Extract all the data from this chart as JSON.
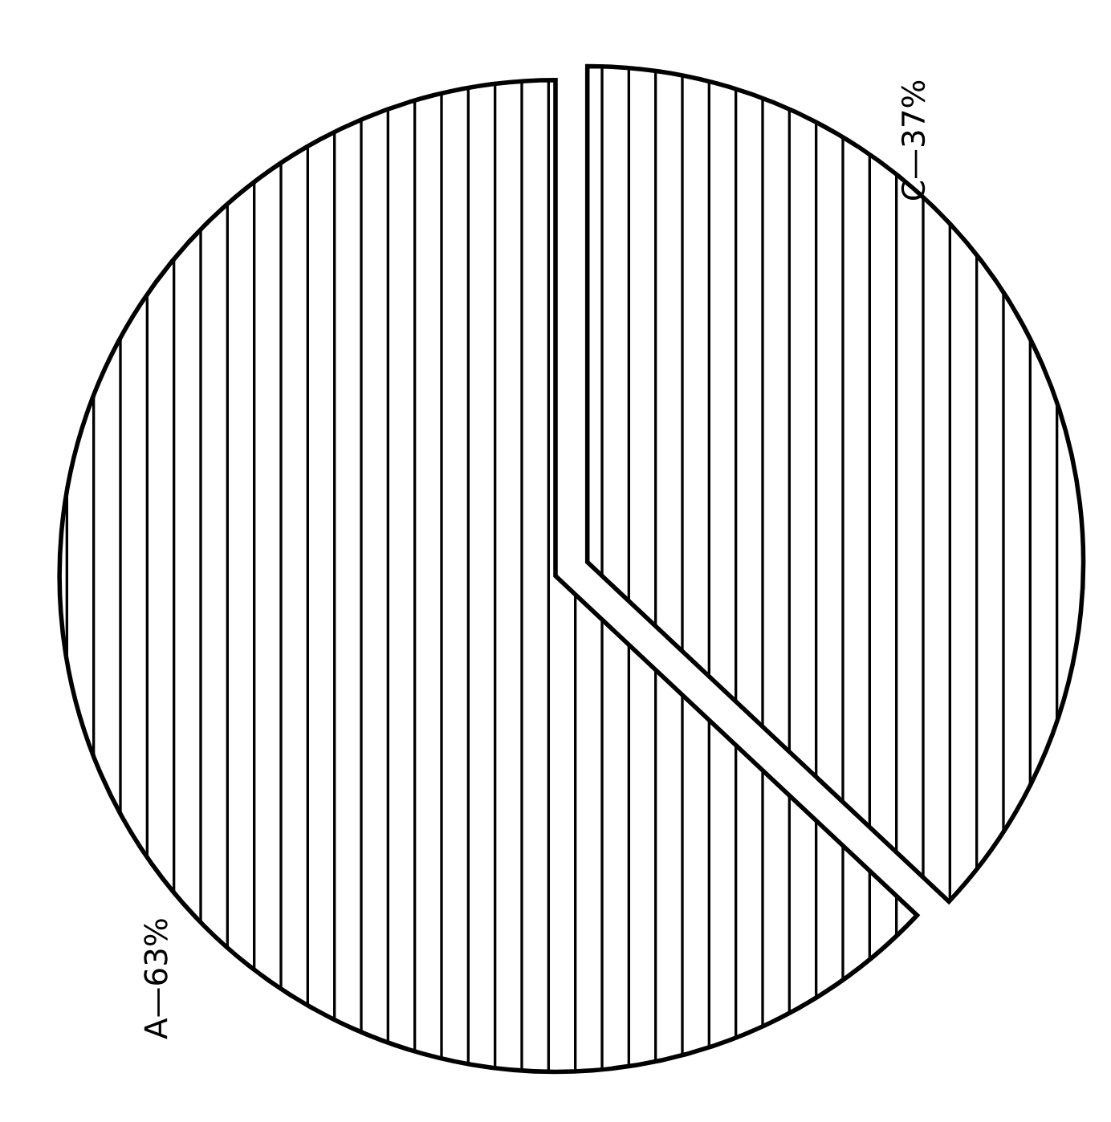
{
  "chart_data": {
    "type": "pie",
    "categories": [
      "A—63%",
      "C—37%"
    ],
    "values": [
      63,
      37
    ]
  }
}
